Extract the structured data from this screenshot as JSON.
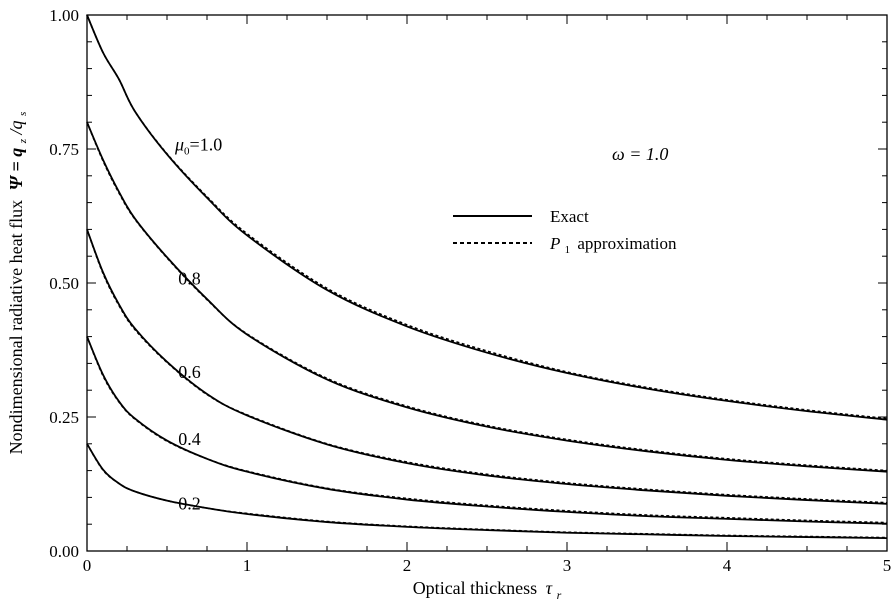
{
  "chart_data": {
    "type": "line",
    "xlabel": "Optical thickness",
    "xlabel_symbol": "τ",
    "xlabel_subscript": "r",
    "ylabel": "Nondimensional radiative heat flux",
    "ylabel_symbol": "Ψ = q",
    "ylabel_sub1": "z",
    "ylabel_mid": "/q",
    "ylabel_sub2": "s",
    "annotation": "ω = 1.0",
    "xlim": [
      0,
      5
    ],
    "ylim": [
      0,
      1
    ],
    "x_ticks": [
      "0",
      "1",
      "2",
      "3",
      "4",
      "5"
    ],
    "y_ticks": [
      "0.00",
      "0.25",
      "0.50",
      "0.75",
      "1.00"
    ],
    "legend": [
      {
        "label": "Exact",
        "style": "solid"
      },
      {
        "label": "approximation",
        "prefix": "P",
        "prefix_sub": "1",
        "style": "dashed"
      }
    ],
    "x": [
      0,
      0.1,
      0.2,
      0.3,
      0.5,
      0.75,
      1.0,
      1.5,
      2.0,
      2.5,
      3.0,
      3.5,
      4.0,
      4.5,
      5.0
    ],
    "series": [
      {
        "label": "μ",
        "label_sub": "0",
        "label_rest": "=1.0",
        "exact": [
          1.0,
          0.93,
          0.88,
          0.82,
          0.74,
          0.659,
          0.589,
          0.487,
          0.419,
          0.37,
          0.332,
          0.303,
          0.28,
          0.261,
          0.245
        ],
        "p1": [
          1.0,
          0.93,
          0.88,
          0.82,
          0.741,
          0.661,
          0.592,
          0.49,
          0.422,
          0.373,
          0.334,
          0.305,
          0.282,
          0.263,
          0.247
        ]
      },
      {
        "label": "0.8",
        "exact": [
          0.8,
          0.73,
          0.67,
          0.62,
          0.548,
          0.47,
          0.404,
          0.32,
          0.268,
          0.232,
          0.206,
          0.186,
          0.17,
          0.158,
          0.148
        ],
        "p1": [
          0.8,
          0.728,
          0.668,
          0.619,
          0.547,
          0.469,
          0.405,
          0.322,
          0.27,
          0.234,
          0.208,
          0.188,
          0.172,
          0.16,
          0.15
        ]
      },
      {
        "label": "0.6",
        "exact": [
          0.6,
          0.52,
          0.46,
          0.415,
          0.353,
          0.293,
          0.253,
          0.199,
          0.164,
          0.141,
          0.125,
          0.113,
          0.103,
          0.095,
          0.088
        ],
        "p1": [
          0.6,
          0.518,
          0.458,
          0.413,
          0.352,
          0.292,
          0.254,
          0.2,
          0.166,
          0.143,
          0.127,
          0.115,
          0.105,
          0.097,
          0.09
        ]
      },
      {
        "label": "0.4",
        "exact": [
          0.4,
          0.329,
          0.279,
          0.247,
          0.206,
          0.172,
          0.148,
          0.116,
          0.096,
          0.083,
          0.073,
          0.065,
          0.06,
          0.055,
          0.051
        ],
        "p1": [
          0.4,
          0.327,
          0.278,
          0.246,
          0.205,
          0.172,
          0.149,
          0.117,
          0.098,
          0.085,
          0.075,
          0.067,
          0.062,
          0.057,
          0.053
        ]
      },
      {
        "label": "0.2",
        "exact": [
          0.2,
          0.152,
          0.126,
          0.111,
          0.094,
          0.08,
          0.069,
          0.054,
          0.045,
          0.039,
          0.034,
          0.031,
          0.028,
          0.026,
          0.024
        ],
        "p1": [
          0.2,
          0.151,
          0.126,
          0.111,
          0.094,
          0.08,
          0.07,
          0.055,
          0.046,
          0.04,
          0.035,
          0.032,
          0.029,
          0.027,
          0.025
        ]
      }
    ]
  }
}
